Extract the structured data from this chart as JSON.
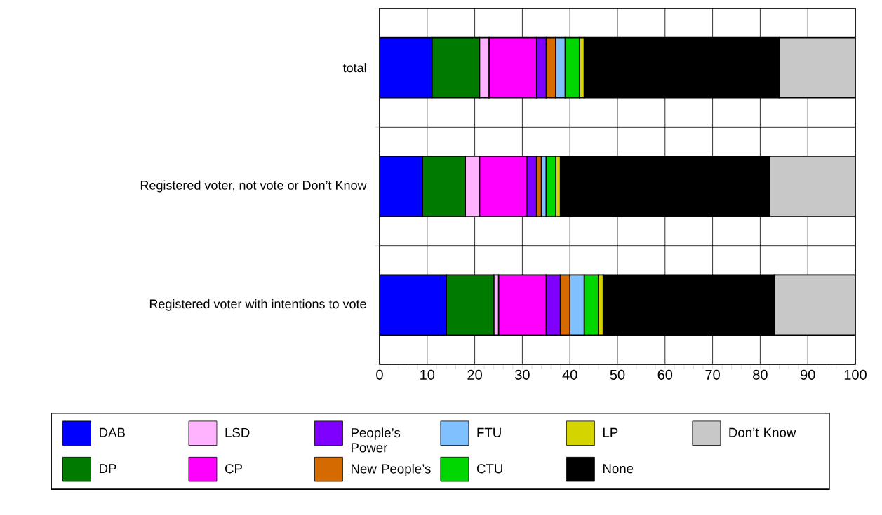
{
  "chart_data": {
    "type": "bar",
    "orientation": "horizontal",
    "stacked": true,
    "categories": [
      "total",
      "Registered voter, not vote or Don’t Know",
      "Registered voter with intentions to vote"
    ],
    "series": [
      {
        "name": "DAB",
        "color": "#0000ff",
        "values": [
          11,
          9,
          14
        ]
      },
      {
        "name": "DP",
        "color": "#007b00",
        "values": [
          10,
          9,
          10
        ]
      },
      {
        "name": "LSD",
        "color": "#ffb3ff",
        "values": [
          2,
          3,
          1
        ]
      },
      {
        "name": "CP",
        "color": "#ff00ff",
        "values": [
          10,
          10,
          10
        ]
      },
      {
        "name": "People’s Power",
        "color": "#7f00ff",
        "values": [
          2,
          2,
          3
        ]
      },
      {
        "name": "New People’s",
        "color": "#d56a00",
        "values": [
          2,
          1,
          2
        ]
      },
      {
        "name": "FTU",
        "color": "#80c0ff",
        "values": [
          2,
          1,
          3
        ]
      },
      {
        "name": "CTU",
        "color": "#00d600",
        "values": [
          3,
          2,
          3
        ]
      },
      {
        "name": "LP",
        "color": "#d4d400",
        "values": [
          1,
          1,
          1
        ]
      },
      {
        "name": "None",
        "color": "#000000",
        "values": [
          41,
          44,
          36
        ]
      },
      {
        "name": "Don’t Know",
        "color": "#c8c8c8",
        "values": [
          16,
          18,
          17
        ]
      }
    ],
    "xlim": [
      0,
      100
    ],
    "xticks": [
      0,
      10,
      20,
      30,
      40,
      50,
      60,
      70,
      80,
      90,
      100
    ],
    "grid": true,
    "legend": "bottom"
  }
}
